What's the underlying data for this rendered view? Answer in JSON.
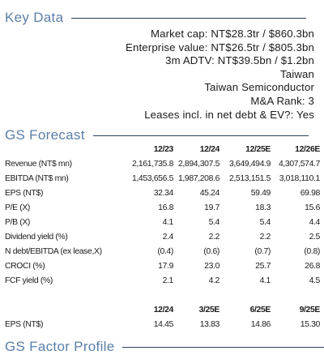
{
  "key_data": {
    "title": "Key Data",
    "lines": [
      "Market cap: NT$28.3tr / $860.3bn",
      "Enterprise value: NT$26.5tr / $805.3bn",
      "3m ADTV: NT$39.5bn / $1.2bn",
      "Taiwan",
      "Taiwan Semiconductor",
      "M&A Rank: 3",
      "Leases incl. in net debt & EV?: Yes"
    ]
  },
  "forecast": {
    "title": "GS Forecast",
    "headers": [
      "12/23",
      "12/24",
      "12/25E",
      "12/26E"
    ],
    "rows": [
      {
        "label": "Revenue (NT$ mn)",
        "values": [
          "2,161,735.8",
          "2,894,307.5",
          "3,649,494.9",
          "4,307,574.7"
        ]
      },
      {
        "label": "EBITDA (NT$ mn)",
        "values": [
          "1,453,656.5",
          "1,987,208.6",
          "2,513,151.5",
          "3,018,110.1"
        ]
      },
      {
        "label": "EPS (NT$)",
        "values": [
          "32.34",
          "45.24",
          "59.49",
          "69.98"
        ]
      },
      {
        "label": "P/E (X)",
        "values": [
          "16.8",
          "19.7",
          "18.3",
          "15.6"
        ]
      },
      {
        "label": "P/B (X)",
        "values": [
          "4.1",
          "5.4",
          "5.4",
          "4.4"
        ]
      },
      {
        "label": "Dividend yield (%)",
        "values": [
          "2.4",
          "2.2",
          "2.2",
          "2.5"
        ]
      },
      {
        "label": "N debt/EBITDA (ex lease,X)",
        "values": [
          "(0.4)",
          "(0.6)",
          "(0.7)",
          "(0.8)"
        ]
      },
      {
        "label": "CROCI (%)",
        "values": [
          "17.9",
          "23.0",
          "25.7",
          "26.8"
        ]
      },
      {
        "label": "FCF yield (%)",
        "values": [
          "2.1",
          "4.2",
          "4.1",
          "4.5"
        ]
      }
    ],
    "quarterly_headers": [
      "12/24",
      "3/25E",
      "6/25E",
      "9/25E"
    ],
    "quarterly_rows": [
      {
        "label": "EPS (NT$)",
        "values": [
          "14.45",
          "13.83",
          "14.86",
          "15.30"
        ]
      }
    ]
  },
  "next_section": {
    "title": "GS Factor Profile"
  }
}
